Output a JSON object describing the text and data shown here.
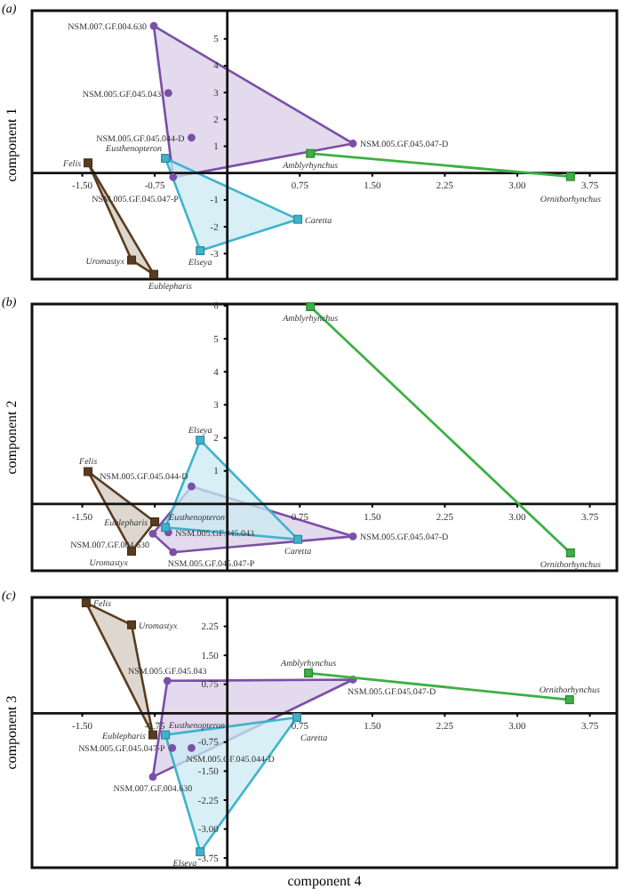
{
  "chart_data": [
    {
      "type": "scatter",
      "title": "(a)",
      "ylabel": "component 1",
      "xlim": [
        -2.02,
        4.03
      ],
      "ylim": [
        -3.95,
        6.05
      ],
      "xticks": [
        {
          "value": -1.5,
          "label": "-1.50"
        },
        {
          "value": -0.75,
          "label": "-0.75"
        },
        {
          "value": 0.75,
          "label": "0.75"
        },
        {
          "value": 1.5,
          "label": "1.50"
        },
        {
          "value": 2.25,
          "label": "2.25"
        },
        {
          "value": 3,
          "label": "3.00"
        },
        {
          "value": 3.75,
          "label": "3.75"
        }
      ],
      "yticks": [
        -3,
        -2,
        -1,
        1,
        2,
        3,
        4,
        5
      ],
      "series": [
        {
          "type": "scatter",
          "marker": "circle",
          "color": "#7b4fa8",
          "x": [
            -0.76,
            -0.61,
            -0.37,
            1.3,
            -0.56
          ],
          "values": [
            5.48,
            2.98,
            1.32,
            1.1,
            -0.15
          ]
        },
        {
          "type": "scatter",
          "marker": "square",
          "color": "#3fb3cc",
          "x": [
            -0.64,
            0.73,
            -0.28
          ],
          "values": [
            0.55,
            -1.72,
            -2.89
          ]
        },
        {
          "type": "scatter",
          "marker": "square",
          "color": "#5a3d1e",
          "x": [
            -1.44,
            -0.99,
            -0.76
          ],
          "values": [
            0.38,
            -3.24,
            -3.77
          ]
        },
        {
          "type": "line",
          "marker": "square",
          "color": "#3cb043",
          "x": [
            0.86,
            3.55
          ],
          "values": [
            0.73,
            -0.13
          ]
        }
      ],
      "annotations": [
        {
          "text": "NSM.007.GF.004.630",
          "x": -0.76,
          "y": 5.48
        },
        {
          "text": "NSM.005.GF.045.043",
          "x": -0.61,
          "y": 2.98
        },
        {
          "text": "NSM.005.GF.045.044-D",
          "x": -0.37,
          "y": 1.32
        },
        {
          "text": "NSM.005.GF.045.047-D",
          "x": 1.3,
          "y": 1.1
        },
        {
          "text": "NSM.005.GF.045.047-P",
          "x": -0.56,
          "y": -0.15
        },
        {
          "text": "Eusthenopteron",
          "x": -0.64,
          "y": 0.55
        },
        {
          "text": "Caretta",
          "x": 0.73,
          "y": -1.72
        },
        {
          "text": "Elseya",
          "x": -0.28,
          "y": -2.89
        },
        {
          "text": "Felis",
          "x": -1.44,
          "y": 0.38
        },
        {
          "text": "Uromastyx",
          "x": -0.99,
          "y": -3.24
        },
        {
          "text": "Eublepharis",
          "x": -0.76,
          "y": -3.77
        },
        {
          "text": "Amblyrhynchus",
          "x": 0.86,
          "y": 0.73
        },
        {
          "text": "Ornithorhynchus",
          "x": 3.55,
          "y": -0.13
        }
      ]
    },
    {
      "type": "scatter",
      "title": "(b)",
      "ylabel": "component 2",
      "xlim": [
        -2.02,
        4.03
      ],
      "ylim": [
        -2.02,
        6.05
      ],
      "xticks": [
        {
          "value": -1.5,
          "label": "-1.50"
        },
        {
          "value": -0.75,
          "label": null
        },
        {
          "value": 0.75,
          "label": "0.75"
        },
        {
          "value": 1.5,
          "label": "1.50"
        },
        {
          "value": 2.25,
          "label": "2.25"
        },
        {
          "value": 3,
          "label": "3.00"
        },
        {
          "value": 3.75,
          "label": "3.75"
        }
      ],
      "yticks": [
        1,
        2,
        3,
        4,
        5,
        6
      ],
      "series": [
        {
          "type": "scatter",
          "marker": "circle",
          "color": "#7b4fa8",
          "x": [
            -0.77,
            -0.61,
            -0.37,
            1.3,
            -0.56
          ],
          "values": [
            -0.9,
            -0.86,
            0.53,
            -0.98,
            -1.46
          ]
        },
        {
          "type": "scatter",
          "marker": "square",
          "color": "#3fb3cc",
          "x": [
            -0.64,
            0.73,
            -0.28
          ],
          "values": [
            -0.71,
            -1.07,
            1.93
          ]
        },
        {
          "type": "scatter",
          "marker": "square",
          "color": "#5a3d1e",
          "x": [
            -1.44,
            -0.99,
            -0.75
          ],
          "values": [
            0.98,
            -1.43,
            -0.54
          ]
        },
        {
          "type": "line",
          "marker": "square",
          "color": "#3cb043",
          "x": [
            0.86,
            3.55
          ],
          "values": [
            5.97,
            -1.48
          ]
        }
      ],
      "annotations": [
        {
          "text": "NSM.007.GF.004.630",
          "x": -0.77,
          "y": -0.9
        },
        {
          "text": "NSM.005.GF.045.043",
          "x": -0.61,
          "y": -0.86
        },
        {
          "text": "NSM.005.GF.045.044-D",
          "x": -0.37,
          "y": 0.53
        },
        {
          "text": "NSM.005.GF.045.047-D",
          "x": 1.3,
          "y": -0.98
        },
        {
          "text": "NSM.005.GF.045.047-P",
          "x": -0.56,
          "y": -1.46
        },
        {
          "text": "Eusthenopteron",
          "x": -0.64,
          "y": -0.71
        },
        {
          "text": "Caretta",
          "x": 0.73,
          "y": -1.07
        },
        {
          "text": "Elseya",
          "x": -0.28,
          "y": 1.93
        },
        {
          "text": "Felis",
          "x": -1.44,
          "y": 0.98
        },
        {
          "text": "Uromastyx",
          "x": -0.99,
          "y": -1.43
        },
        {
          "text": "Eublepharis",
          "x": -0.75,
          "y": -0.54
        },
        {
          "text": "Amblyrhynchus",
          "x": 0.86,
          "y": 5.97
        },
        {
          "text": "Ornithorhynchus",
          "x": 3.55,
          "y": -1.48
        }
      ]
    },
    {
      "type": "scatter",
      "title": "(c)",
      "ylabel": "component 3",
      "xlabel": "component 4",
      "xlim": [
        -2.02,
        4.03
      ],
      "ylim": [
        -4,
        3
      ],
      "xticks": [
        {
          "value": -1.5,
          "label": "-1.50"
        },
        {
          "value": -0.75,
          "label": "-0.75"
        },
        {
          "value": 0.75,
          "label": "0.75"
        },
        {
          "value": 1.5,
          "label": "1.50"
        },
        {
          "value": 2.25,
          "label": "2.25"
        },
        {
          "value": 3,
          "label": "3.00"
        },
        {
          "value": 3.75,
          "label": "3.75"
        }
      ],
      "yticks": [
        {
          "value": -3.75,
          "label": "-3.75"
        },
        {
          "value": -3,
          "label": "-3.00"
        },
        {
          "value": -2.25,
          "label": "-2.25"
        },
        {
          "value": -1.5,
          "label": "-1.50"
        },
        {
          "value": -0.75,
          "label": "-0.75"
        },
        {
          "value": 0.75,
          "label": "0.75"
        },
        {
          "value": 1.5,
          "label": "1.50"
        },
        {
          "value": 2.25,
          "label": "2.25"
        }
      ],
      "series": [
        {
          "type": "scatter",
          "marker": "circle",
          "color": "#7b4fa8",
          "x": [
            -0.77,
            -0.62,
            -0.37,
            1.3,
            -0.57
          ],
          "values": [
            -1.65,
            0.84,
            -0.9,
            0.87,
            -0.9
          ]
        },
        {
          "type": "scatter",
          "marker": "square",
          "color": "#3fb3cc",
          "x": [
            -0.64,
            0.72,
            -0.28
          ],
          "values": [
            -0.56,
            -0.11,
            -3.59
          ]
        },
        {
          "type": "scatter",
          "marker": "square",
          "color": "#5a3d1e",
          "x": [
            -1.46,
            -0.99,
            -0.77
          ],
          "values": [
            2.86,
            2.29,
            -0.56
          ]
        },
        {
          "type": "line",
          "marker": "square",
          "color": "#3cb043",
          "x": [
            0.84,
            3.54
          ],
          "values": [
            1.04,
            0.35
          ]
        }
      ],
      "annotations": [
        {
          "text": "NSM.007.GF.004.630",
          "x": -0.77,
          "y": -1.65
        },
        {
          "text": "NSM.005.GF.045.043",
          "x": -0.62,
          "y": 0.84
        },
        {
          "text": "NSM.005.GF.045.044-D",
          "x": -0.37,
          "y": -0.9
        },
        {
          "text": "NSM.005.GF.045.047-D",
          "x": 1.3,
          "y": 0.87
        },
        {
          "text": "NSM.005.GF.045.047-P",
          "x": -0.57,
          "y": -0.9
        },
        {
          "text": "Eusthenopteron",
          "x": -0.64,
          "y": -0.56
        },
        {
          "text": "Caretta",
          "x": 0.72,
          "y": -0.11
        },
        {
          "text": "Elseya",
          "x": -0.28,
          "y": -3.59
        },
        {
          "text": "Felis",
          "x": -1.46,
          "y": 2.86
        },
        {
          "text": "Uromastyx",
          "x": -0.99,
          "y": 2.29
        },
        {
          "text": "Eublepharis",
          "x": -0.77,
          "y": -0.56
        },
        {
          "text": "Amblyrhynchus",
          "x": 0.84,
          "y": 1.04
        },
        {
          "text": "Ornithorhynchus",
          "x": 3.54,
          "y": 0.35
        }
      ]
    }
  ]
}
